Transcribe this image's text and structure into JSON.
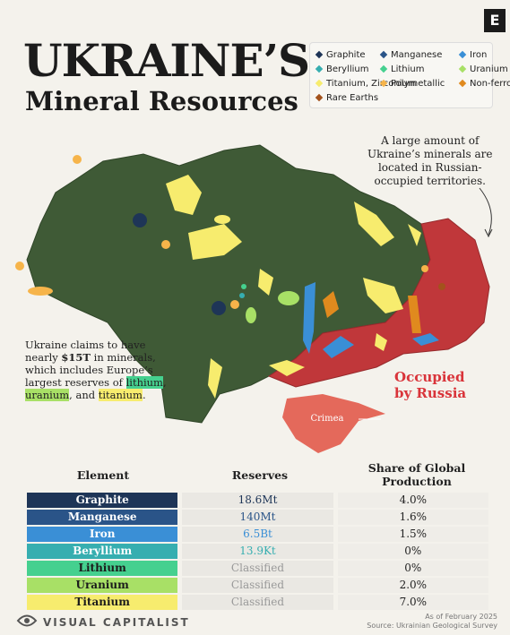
{
  "header": {
    "title_line1": "UKRAINE’S",
    "title_line2": "Mineral Resources",
    "logo": "E"
  },
  "legend": [
    {
      "label": "Graphite",
      "color": "#1e3557"
    },
    {
      "label": "Manganese",
      "color": "#2a5488"
    },
    {
      "label": "Iron",
      "color": "#3a8fd6"
    },
    {
      "label": "Beryllium",
      "color": "#36aeb0"
    },
    {
      "label": "Lithium",
      "color": "#45d08f"
    },
    {
      "label": "Uranium",
      "color": "#a8e066"
    },
    {
      "label": "Titanium, Zirconium",
      "color": "#f7ec6e"
    },
    {
      "label": "Polymetallic",
      "color": "#f6b44a"
    },
    {
      "label": "Non-ferrous metal",
      "color": "#e08a1e"
    },
    {
      "label": "Rare Earths",
      "color": "#a3521c"
    }
  ],
  "annotations": {
    "occupied_note": [
      "A large amount of",
      "Ukraine’s minerals are",
      "located in Russian-",
      "occupied territories."
    ],
    "occupied_label": [
      "Occupied",
      "by Russia"
    ],
    "crimea": "Crimea",
    "claim": [
      "Ukraine claims to have nearly ",
      "$15T",
      " in minerals, which includes Europe’s largest reserves of ",
      "lithium",
      ", ",
      "uranium",
      ", and ",
      "titanium",
      "."
    ]
  },
  "table": {
    "headers": [
      "Element",
      "Reserves",
      "Share of Global Production"
    ],
    "rows": [
      [
        "Graphite",
        "18.6Mt",
        "4.0%"
      ],
      [
        "Manganese",
        "140Mt",
        "1.6%"
      ],
      [
        "Iron",
        "6.5Bt",
        "1.5%"
      ],
      [
        "Beryllium",
        "13.9Kt",
        "0%"
      ],
      [
        "Lithium",
        "Classified",
        "0%"
      ],
      [
        "Uranium",
        "Classified",
        "2.0%"
      ],
      [
        "Titanium",
        "Classified",
        "7.0%"
      ]
    ]
  },
  "footer": {
    "brand": "VISUAL CAPITALIST",
    "date": "As of February 2025",
    "source": "Source: Ukrainian Geological Survey"
  }
}
